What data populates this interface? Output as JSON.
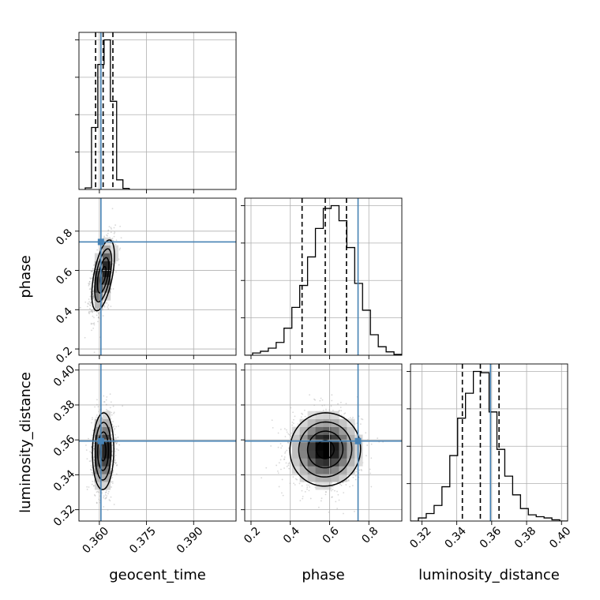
{
  "chart_data": {
    "type": "corner",
    "title": "",
    "parameters": [
      {
        "name": "geocent_time",
        "label": "geocent_time",
        "range": [
          0.3535,
          0.4035
        ],
        "ticks": [
          0.36,
          0.375,
          0.39
        ],
        "tick_labels": [
          "0.360",
          "0.375",
          "0.390"
        ],
        "truth": 0.3605,
        "quantiles": [
          0.3588,
          0.3612,
          0.3643
        ]
      },
      {
        "name": "phase",
        "label": "phase",
        "range": [
          0.168,
          0.968
        ],
        "ticks": [
          0.2,
          0.4,
          0.6,
          0.8
        ],
        "tick_labels": [
          "0.2",
          "0.4",
          "0.6",
          "0.8"
        ],
        "truth": 0.745,
        "quantiles": [
          0.46,
          0.578,
          0.686
        ]
      },
      {
        "name": "luminosity_distance",
        "label": "luminosity_distance",
        "range": [
          0.3135,
          0.4035
        ],
        "ticks": [
          0.32,
          0.34,
          0.36,
          0.38,
          0.4
        ],
        "tick_labels": [
          "0.32",
          "0.34",
          "0.36",
          "0.38",
          "0.40"
        ],
        "truth": 0.3593,
        "quantiles": [
          0.3432,
          0.3535,
          0.3642
        ]
      }
    ],
    "histograms": [
      {
        "param": "geocent_time",
        "bin_edges": [
          0.3555,
          0.3575,
          0.3595,
          0.3615,
          0.3635,
          0.3655,
          0.3675,
          0.3695
        ],
        "counts": [
          3,
          116,
          234,
          280,
          165,
          18,
          2
        ]
      },
      {
        "param": "phase",
        "bin_edges": [
          0.168,
          0.208,
          0.248,
          0.288,
          0.328,
          0.368,
          0.408,
          0.448,
          0.488,
          0.528,
          0.568,
          0.608,
          0.648,
          0.688,
          0.728,
          0.768,
          0.808,
          0.848,
          0.888,
          0.928,
          0.968
        ],
        "counts": [
          0,
          8,
          14,
          25,
          45,
          95,
          168,
          245,
          345,
          445,
          515,
          525,
          472,
          378,
          252,
          158,
          72,
          30,
          12,
          3
        ]
      },
      {
        "param": "luminosity_distance",
        "bin_edges": [
          0.3135,
          0.318,
          0.3225,
          0.327,
          0.3315,
          0.336,
          0.3405,
          0.345,
          0.3495,
          0.354,
          0.3585,
          0.363,
          0.3675,
          0.372,
          0.3765,
          0.381,
          0.3855,
          0.39,
          0.3945,
          0.399,
          0.4035
        ],
        "counts": [
          0,
          5,
          12,
          25,
          55,
          105,
          165,
          205,
          240,
          238,
          175,
          115,
          72,
          42,
          20,
          10,
          7,
          5,
          2,
          0
        ]
      }
    ],
    "joint": [
      {
        "x": "geocent_time",
        "y": "phase",
        "center": [
          0.3612,
          0.575
        ],
        "sigma": [
          0.0018,
          0.09
        ],
        "rho": 0.55
      },
      {
        "x": "geocent_time",
        "y": "luminosity_distance",
        "center": [
          0.3612,
          0.3535
        ],
        "sigma": [
          0.0017,
          0.011
        ],
        "rho": 0.05
      },
      {
        "x": "phase",
        "y": "luminosity_distance",
        "center": [
          0.578,
          0.3545
        ],
        "sigma": [
          0.09,
          0.0105
        ],
        "rho": 0.02
      }
    ],
    "truth_color": "#4682b4",
    "line_color": "#000000",
    "grid": true
  }
}
